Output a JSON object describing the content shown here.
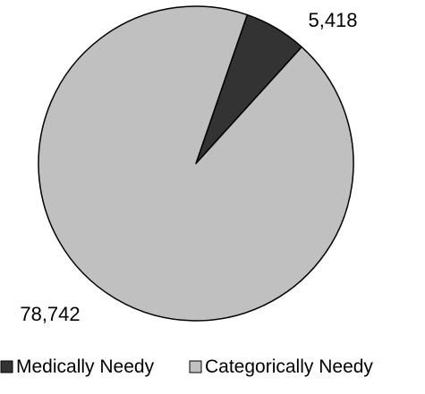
{
  "chart_data": {
    "type": "pie",
    "title": "",
    "series": [
      {
        "name": "",
        "slices": [
          {
            "label": "Medically Needy",
            "value": 5418,
            "display_value": "5,418",
            "color": "#333333"
          },
          {
            "label": "Categorically Needy",
            "value": 78742,
            "display_value": "78,742",
            "color": "#c0c0c0"
          }
        ]
      }
    ],
    "legend": {
      "position": "bottom",
      "entries": [
        {
          "label": "Medically Needy",
          "color": "#333333"
        },
        {
          "label": "Categorically Needy",
          "color": "#c0c0c0"
        }
      ]
    },
    "outline_color": "#000000"
  }
}
